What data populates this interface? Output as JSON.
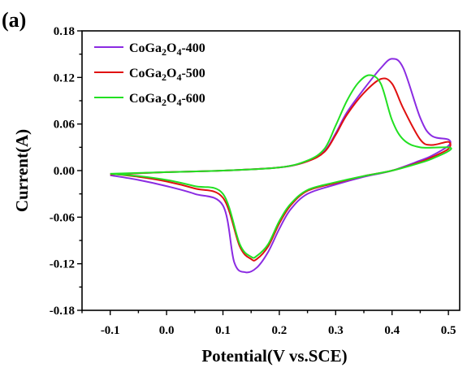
{
  "panel_label": "(a)",
  "chart_data": {
    "type": "line",
    "xlabel": "Potential(V vs.SCE)",
    "ylabel": "Current(A)",
    "xlim": [
      -0.15,
      0.52
    ],
    "ylim": [
      -0.18,
      0.18
    ],
    "xticks": [
      -0.1,
      0.0,
      0.1,
      0.2,
      0.3,
      0.4,
      0.5
    ],
    "xtick_labels": [
      "-0.1",
      "0.0",
      "0.1",
      "0.2",
      "0.3",
      "0.4",
      "0.5"
    ],
    "yticks": [
      -0.18,
      -0.12,
      -0.06,
      0.0,
      0.06,
      0.12,
      0.18
    ],
    "ytick_labels": [
      "-0.18",
      "-0.12",
      "-0.06",
      "0.00",
      "0.06",
      "0.12",
      "0.18"
    ],
    "grid": false,
    "legend_position": "top-left",
    "series": [
      {
        "name_parts": {
          "base": "CoGa",
          "sub1": "2",
          "mid": "O",
          "sub2": "4",
          "suffix": "-400"
        },
        "color": "#8B2BE2",
        "x": [
          -0.1,
          0.0,
          0.1,
          0.2,
          0.25,
          0.28,
          0.3,
          0.32,
          0.35,
          0.38,
          0.4,
          0.42,
          0.45,
          0.47,
          0.5,
          0.5,
          0.47,
          0.45,
          0.4,
          0.35,
          0.3,
          0.25,
          0.22,
          0.2,
          0.18,
          0.16,
          0.14,
          0.12,
          0.1,
          0.05,
          0.0,
          -0.05,
          -0.1
        ],
        "y": [
          -0.005,
          -0.002,
          0.0,
          0.004,
          0.012,
          0.025,
          0.048,
          0.075,
          0.105,
          0.132,
          0.144,
          0.132,
          0.068,
          0.045,
          0.04,
          0.032,
          0.019,
          0.013,
          0.0,
          -0.008,
          -0.018,
          -0.03,
          -0.05,
          -0.075,
          -0.105,
          -0.125,
          -0.131,
          -0.118,
          -0.045,
          -0.03,
          -0.02,
          -0.012,
          -0.006
        ]
      },
      {
        "name_parts": {
          "base": "CoGa",
          "sub1": "2",
          "mid": "O",
          "sub2": "4",
          "suffix": "-500"
        },
        "color": "#E01010",
        "x": [
          -0.1,
          0.0,
          0.1,
          0.2,
          0.25,
          0.28,
          0.3,
          0.32,
          0.35,
          0.38,
          0.4,
          0.42,
          0.45,
          0.47,
          0.5,
          0.5,
          0.47,
          0.45,
          0.4,
          0.35,
          0.3,
          0.25,
          0.22,
          0.2,
          0.18,
          0.16,
          0.15,
          0.13,
          0.1,
          0.05,
          0.0,
          -0.05,
          -0.1
        ],
        "y": [
          -0.005,
          -0.002,
          0.0,
          0.004,
          0.012,
          0.024,
          0.046,
          0.072,
          0.1,
          0.118,
          0.112,
          0.08,
          0.04,
          0.033,
          0.037,
          0.028,
          0.017,
          0.011,
          0.0,
          -0.007,
          -0.016,
          -0.026,
          -0.045,
          -0.068,
          -0.098,
          -0.114,
          -0.114,
          -0.098,
          -0.035,
          -0.023,
          -0.014,
          -0.008,
          -0.004
        ]
      },
      {
        "name_parts": {
          "base": "CoGa",
          "sub1": "2",
          "mid": "O",
          "sub2": "4",
          "suffix": "-600"
        },
        "color": "#22E022",
        "x": [
          -0.1,
          0.0,
          0.1,
          0.2,
          0.25,
          0.28,
          0.3,
          0.32,
          0.34,
          0.36,
          0.38,
          0.4,
          0.42,
          0.45,
          0.5,
          0.5,
          0.47,
          0.45,
          0.4,
          0.35,
          0.3,
          0.25,
          0.22,
          0.2,
          0.18,
          0.16,
          0.15,
          0.13,
          0.1,
          0.05,
          0.0,
          -0.05,
          -0.1
        ],
        "y": [
          -0.004,
          -0.002,
          0.0,
          0.004,
          0.013,
          0.028,
          0.058,
          0.09,
          0.113,
          0.123,
          0.112,
          0.065,
          0.04,
          0.03,
          0.03,
          0.025,
          0.015,
          0.01,
          0.0,
          -0.007,
          -0.015,
          -0.025,
          -0.043,
          -0.065,
          -0.095,
          -0.11,
          -0.111,
          -0.095,
          -0.03,
          -0.02,
          -0.012,
          -0.007,
          -0.004
        ]
      }
    ]
  }
}
